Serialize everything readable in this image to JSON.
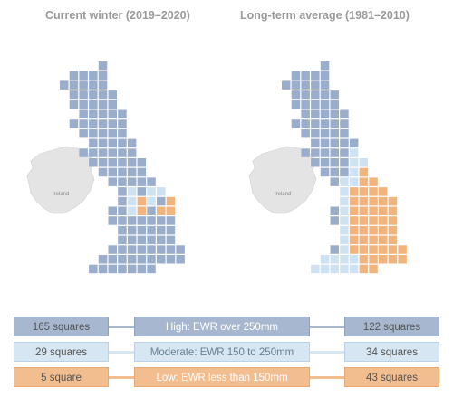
{
  "maps": {
    "left": {
      "title": "Current winter (2019–2020)",
      "label_ireland": "Ireland",
      "orange_cells": [
        "21,16",
        "22,16",
        "21,18",
        "22,19",
        "23,19",
        "20,20",
        "21,20",
        "22,20"
      ],
      "light_cells": [
        "20,15",
        "21,15",
        "22,15",
        "20,16",
        "20,17",
        "21,17",
        "22,17",
        "20,18",
        "22,18",
        "17,18",
        "18,19",
        "19,19",
        "19,20",
        "18,20",
        "17,19",
        "16,19",
        "16,20"
      ]
    },
    "right": {
      "title": "Long-term average (1981–2010)",
      "label_ireland": "Ireland"
    }
  },
  "legend": {
    "high": {
      "left": "165 squares",
      "label": "High: EWR over 250mm",
      "right": "122 squares"
    },
    "moderate": {
      "left": "29 squares",
      "label": "Moderate: EWR 150 to 250mm",
      "right": "34 squares"
    },
    "low": {
      "left": "5 square",
      "label": "Low: EWR less than 150mm",
      "right": "43 squares"
    }
  },
  "colors": {
    "high": "#9aaecb",
    "moderate": "#cfe2f1",
    "low": "#f0b57f",
    "land": "#e6e6e6"
  }
}
